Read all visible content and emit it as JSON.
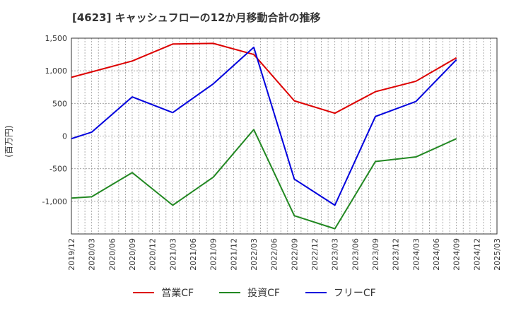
{
  "chart_data": {
    "type": "line",
    "title": "[4623]  キャッシュフローの12か月移動合計の推移",
    "ylabel": "(百万円)",
    "xlabel": "",
    "ylim": [
      -1500,
      1500
    ],
    "yticks": [
      1500,
      1000,
      500,
      0,
      -500,
      -1000
    ],
    "ytick_labels": [
      "1,500",
      "1,000",
      "500",
      "0",
      "-500",
      "-1,000"
    ],
    "categories": [
      "2019/12",
      "2020/03",
      "2020/06",
      "2020/09",
      "2020/12",
      "2021/03",
      "2021/06",
      "2021/09",
      "2021/12",
      "2022/03",
      "2022/06",
      "2022/09",
      "2022/12",
      "2023/03",
      "2023/06",
      "2023/09",
      "2023/12",
      "2024/03",
      "2024/06",
      "2024/09",
      "2024/12",
      "2025/03"
    ],
    "series": [
      {
        "name": "営業CF",
        "color": "#dd0000",
        "points": [
          [
            "2019/12",
            900
          ],
          [
            "2020/09",
            1150
          ],
          [
            "2021/03",
            1410
          ],
          [
            "2021/09",
            1420
          ],
          [
            "2022/03",
            1250
          ],
          [
            "2022/09",
            540
          ],
          [
            "2023/03",
            350
          ],
          [
            "2023/09",
            680
          ],
          [
            "2024/03",
            840
          ],
          [
            "2024/09",
            1200
          ]
        ]
      },
      {
        "name": "投資CF",
        "color": "#228822",
        "points": [
          [
            "2019/12",
            -950
          ],
          [
            "2020/03",
            -930
          ],
          [
            "2020/09",
            -560
          ],
          [
            "2021/03",
            -1060
          ],
          [
            "2021/09",
            -630
          ],
          [
            "2022/03",
            100
          ],
          [
            "2022/09",
            -1220
          ],
          [
            "2023/03",
            -1420
          ],
          [
            "2023/09",
            -390
          ],
          [
            "2024/03",
            -320
          ],
          [
            "2024/09",
            -40
          ]
        ]
      },
      {
        "name": "フリーCF",
        "color": "#0000dd",
        "points": [
          [
            "2019/12",
            -40
          ],
          [
            "2020/03",
            60
          ],
          [
            "2020/09",
            600
          ],
          [
            "2021/03",
            360
          ],
          [
            "2021/09",
            800
          ],
          [
            "2022/03",
            1360
          ],
          [
            "2022/09",
            -660
          ],
          [
            "2023/03",
            -1060
          ],
          [
            "2023/09",
            300
          ],
          [
            "2024/03",
            530
          ],
          [
            "2024/09",
            1170
          ]
        ]
      }
    ],
    "grid": true,
    "legend": "bottom"
  }
}
